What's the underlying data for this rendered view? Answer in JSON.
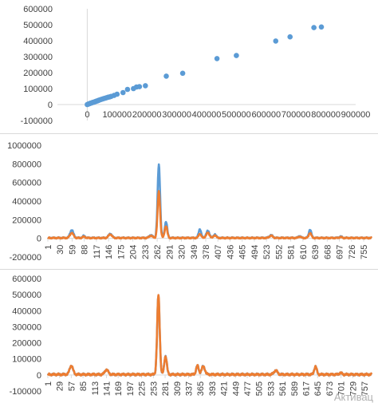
{
  "colors": {
    "series1": "#5b9bd5",
    "series2": "#ed7d31",
    "axis": "#d9d9d9",
    "tick": "#404040"
  },
  "watermark": "Активац",
  "chart_data": [
    {
      "type": "scatter",
      "xlim": [
        -100000,
        900000
      ],
      "ylim": [
        -100000,
        600000
      ],
      "xticks": [
        0,
        100000,
        200000,
        300000,
        400000,
        500000,
        600000,
        700000,
        800000,
        900000
      ],
      "yticks": [
        -100000,
        0,
        100000,
        200000,
        300000,
        400000,
        500000,
        600000
      ],
      "xtick_labels": [
        "0",
        "100000",
        "200000",
        "300000",
        "400000",
        "500000",
        "600000",
        "700000",
        "800000",
        "900000"
      ],
      "ytick_labels": [
        "-100000",
        "0",
        "100000",
        "200000",
        "300000",
        "400000",
        "500000",
        "600000"
      ],
      "grid": "none",
      "points": [
        {
          "x": 0,
          "y": 0
        },
        {
          "x": 3000,
          "y": 2000
        },
        {
          "x": 5000,
          "y": 4000
        },
        {
          "x": 8000,
          "y": 6000
        },
        {
          "x": 10000,
          "y": 8000
        },
        {
          "x": 13000,
          "y": 9000
        },
        {
          "x": 15000,
          "y": 11000
        },
        {
          "x": 18000,
          "y": 13000
        },
        {
          "x": 20000,
          "y": 14000
        },
        {
          "x": 22000,
          "y": 15000
        },
        {
          "x": 25000,
          "y": 17000
        },
        {
          "x": 28000,
          "y": 19000
        },
        {
          "x": 30000,
          "y": 21000
        },
        {
          "x": 33000,
          "y": 22000
        },
        {
          "x": 35000,
          "y": 24000
        },
        {
          "x": 38000,
          "y": 26000
        },
        {
          "x": 40000,
          "y": 28000
        },
        {
          "x": 45000,
          "y": 31000
        },
        {
          "x": 50000,
          "y": 34000
        },
        {
          "x": 55000,
          "y": 37000
        },
        {
          "x": 60000,
          "y": 40000
        },
        {
          "x": 65000,
          "y": 43000
        },
        {
          "x": 70000,
          "y": 46000
        },
        {
          "x": 75000,
          "y": 48000
        },
        {
          "x": 80000,
          "y": 51000
        },
        {
          "x": 90000,
          "y": 57000
        },
        {
          "x": 100000,
          "y": 65000
        },
        {
          "x": 120000,
          "y": 75000
        },
        {
          "x": 135000,
          "y": 95000
        },
        {
          "x": 155000,
          "y": 100000
        },
        {
          "x": 165000,
          "y": 110000
        },
        {
          "x": 175000,
          "y": 112000
        },
        {
          "x": 195000,
          "y": 118000
        },
        {
          "x": 265000,
          "y": 178000
        },
        {
          "x": 320000,
          "y": 196000
        },
        {
          "x": 435000,
          "y": 288000
        },
        {
          "x": 500000,
          "y": 307000
        },
        {
          "x": 632000,
          "y": 398000
        },
        {
          "x": 680000,
          "y": 424000
        },
        {
          "x": 760000,
          "y": 482000
        },
        {
          "x": 785000,
          "y": 486000
        }
      ]
    },
    {
      "type": "line",
      "ylim": [
        -200000,
        1000000
      ],
      "yticks": [
        -200000,
        0,
        200000,
        400000,
        600000,
        800000,
        1000000
      ],
      "ytick_labels": [
        "-200000",
        "0",
        "200000",
        "400000",
        "600000",
        "800000",
        "1000000"
      ],
      "xmax": 774,
      "x_categories": [
        "1",
        "30",
        "59",
        "88",
        "117",
        "146",
        "175",
        "204",
        "233",
        "262",
        "291",
        "320",
        "349",
        "378",
        "407",
        "436",
        "465",
        "494",
        "523",
        "552",
        "581",
        "610",
        "639",
        "668",
        "697",
        "726",
        "755"
      ],
      "series": [
        {
          "color": "series1",
          "baseline": 5000,
          "peaks": [
            [
              58,
              85000,
              4
            ],
            [
              87,
              22000,
              3
            ],
            [
              150,
              45000,
              4
            ],
            [
              247,
              30000,
              4
            ],
            [
              266,
              790000,
              3
            ],
            [
              283,
              175000,
              3
            ],
            [
              364,
              95000,
              3
            ],
            [
              383,
              75000,
              4
            ],
            [
              400,
              40000,
              3
            ],
            [
              534,
              30000,
              4
            ],
            [
              602,
              20000,
              3
            ],
            [
              627,
              90000,
              3
            ],
            [
              700,
              15000,
              3
            ]
          ]
        },
        {
          "color": "series2",
          "baseline": 4000,
          "peaks": [
            [
              58,
              55000,
              4
            ],
            [
              87,
              15000,
              3
            ],
            [
              150,
              40000,
              4
            ],
            [
              247,
              25000,
              4
            ],
            [
              266,
              500000,
              3
            ],
            [
              283,
              130000,
              3
            ],
            [
              364,
              45000,
              3
            ],
            [
              383,
              55000,
              4
            ],
            [
              400,
              30000,
              3
            ],
            [
              534,
              25000,
              4
            ],
            [
              602,
              15000,
              3
            ],
            [
              627,
              55000,
              3
            ],
            [
              700,
              10000,
              3
            ]
          ]
        }
      ]
    },
    {
      "type": "line",
      "ylim": [
        -100000,
        600000
      ],
      "yticks": [
        -100000,
        0,
        100000,
        200000,
        300000,
        400000,
        500000,
        600000
      ],
      "ytick_labels": [
        "-100000",
        "0",
        "100000",
        "200000",
        "300000",
        "400000",
        "500000",
        "600000"
      ],
      "xmax": 774,
      "x_categories": [
        "1",
        "29",
        "57",
        "85",
        "113",
        "141",
        "169",
        "197",
        "225",
        "253",
        "281",
        "309",
        "337",
        "365",
        "393",
        "421",
        "449",
        "477",
        "505",
        "533",
        "561",
        "589",
        "617",
        "645",
        "673",
        "701",
        "729",
        "757"
      ],
      "series": [
        {
          "color": "series1",
          "baseline": 3000,
          "peaks": [
            [
              57,
              55000,
              4
            ],
            [
              141,
              30000,
              4
            ],
            [
              265,
              490000,
              3
            ],
            [
              282,
              115000,
              3
            ],
            [
              358,
              55000,
              3
            ],
            [
              372,
              50000,
              4
            ],
            [
              545,
              25000,
              4
            ],
            [
              640,
              50000,
              3
            ],
            [
              700,
              10000,
              3
            ]
          ]
        },
        {
          "color": "series2",
          "baseline": 3000,
          "peaks": [
            [
              57,
              55000,
              4
            ],
            [
              141,
              30000,
              4
            ],
            [
              265,
              495000,
              3
            ],
            [
              282,
              115000,
              3
            ],
            [
              358,
              55000,
              3
            ],
            [
              372,
              50000,
              4
            ],
            [
              545,
              25000,
              4
            ],
            [
              640,
              50000,
              3
            ],
            [
              700,
              10000,
              3
            ]
          ]
        }
      ]
    }
  ]
}
